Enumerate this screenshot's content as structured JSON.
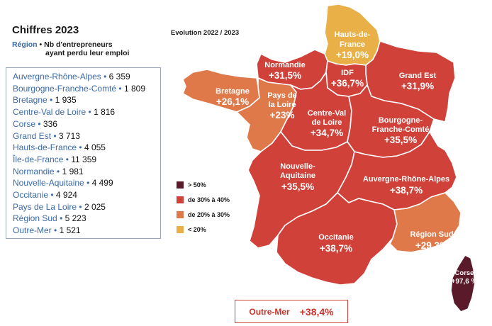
{
  "title": "Chiffres 2023",
  "legend_key": {
    "region": "Région",
    "separator": "•",
    "desc_line1": "Nb d'entrepreneurs",
    "desc_line2": "ayant perdu leur emploi"
  },
  "evolution_title": "Evolution 2022 / 2023",
  "figures": [
    {
      "name": "Auvergne-Rhône-Alpes",
      "value": "6 359"
    },
    {
      "name": "Bourgogne-Franche-Comté",
      "value": "1 809"
    },
    {
      "name": "Bretagne",
      "value": "1 935"
    },
    {
      "name": "Centre-Val de Loire",
      "value": "1 816"
    },
    {
      "name": "Corse",
      "value": "336"
    },
    {
      "name": "Grand Est",
      "value": "3 713"
    },
    {
      "name": "Hauts-de-France",
      "value": "4 055"
    },
    {
      "name": "Île-de-France",
      "value": "11 359"
    },
    {
      "name": "Normandie",
      "value": "1 981"
    },
    {
      "name": "Nouvelle-Aquitaine",
      "value": "4 499"
    },
    {
      "name": "Occitanie",
      "value": "4 924"
    },
    {
      "name": "Pays de La Loire",
      "value": "2 025"
    },
    {
      "name": "Région Sud",
      "value": "5 223"
    },
    {
      "name": "Outre-Mer",
      "value": "1 521"
    }
  ],
  "map_regions": {
    "hdf": {
      "name_l1": "Hauts-de-",
      "name_l2": "France",
      "value": "+19,0%"
    },
    "norm": {
      "name": "Normandie",
      "value": "+31,5%"
    },
    "idf": {
      "name": "IDF",
      "value": "+36,7%"
    },
    "ge": {
      "name": "Grand Est",
      "value": "+31,9%"
    },
    "bret": {
      "name": "Bretagne",
      "value": "+26,1%"
    },
    "pdl": {
      "name_l1": "Pays de",
      "name_l2": "la Loire",
      "value": "+23%"
    },
    "cvl": {
      "name_l1": "Centre-Val",
      "name_l2": "de Loire",
      "value": "+34,7%"
    },
    "bfc": {
      "name_l1": "Bourgogne-",
      "name_l2": "Franche-Comté",
      "value": "+35,5%"
    },
    "na": {
      "name_l1": "Nouvelle-",
      "name_l2": "Aquitaine",
      "value": "+35,5%"
    },
    "ara": {
      "name": "Auvergne-Rhône-Alpes",
      "value": "+38,7%"
    },
    "occ": {
      "name": "Occitanie",
      "value": "+38,7%"
    },
    "sud": {
      "name": "Région Sud",
      "value": "+29,3%"
    },
    "corse": {
      "name": "Corse",
      "value": "+97,6 %"
    }
  },
  "categories": [
    {
      "label": "> 50%",
      "color": "#5a1a2a"
    },
    {
      "label": "de 30% à 40%",
      "color": "#d0413a"
    },
    {
      "label": "de 20% à 30%",
      "color": "#e0794a"
    },
    {
      "label": "< 20%",
      "color": "#eab048"
    }
  ],
  "outremer": {
    "name": "Outre-Mer",
    "value": "+38,4%"
  }
}
